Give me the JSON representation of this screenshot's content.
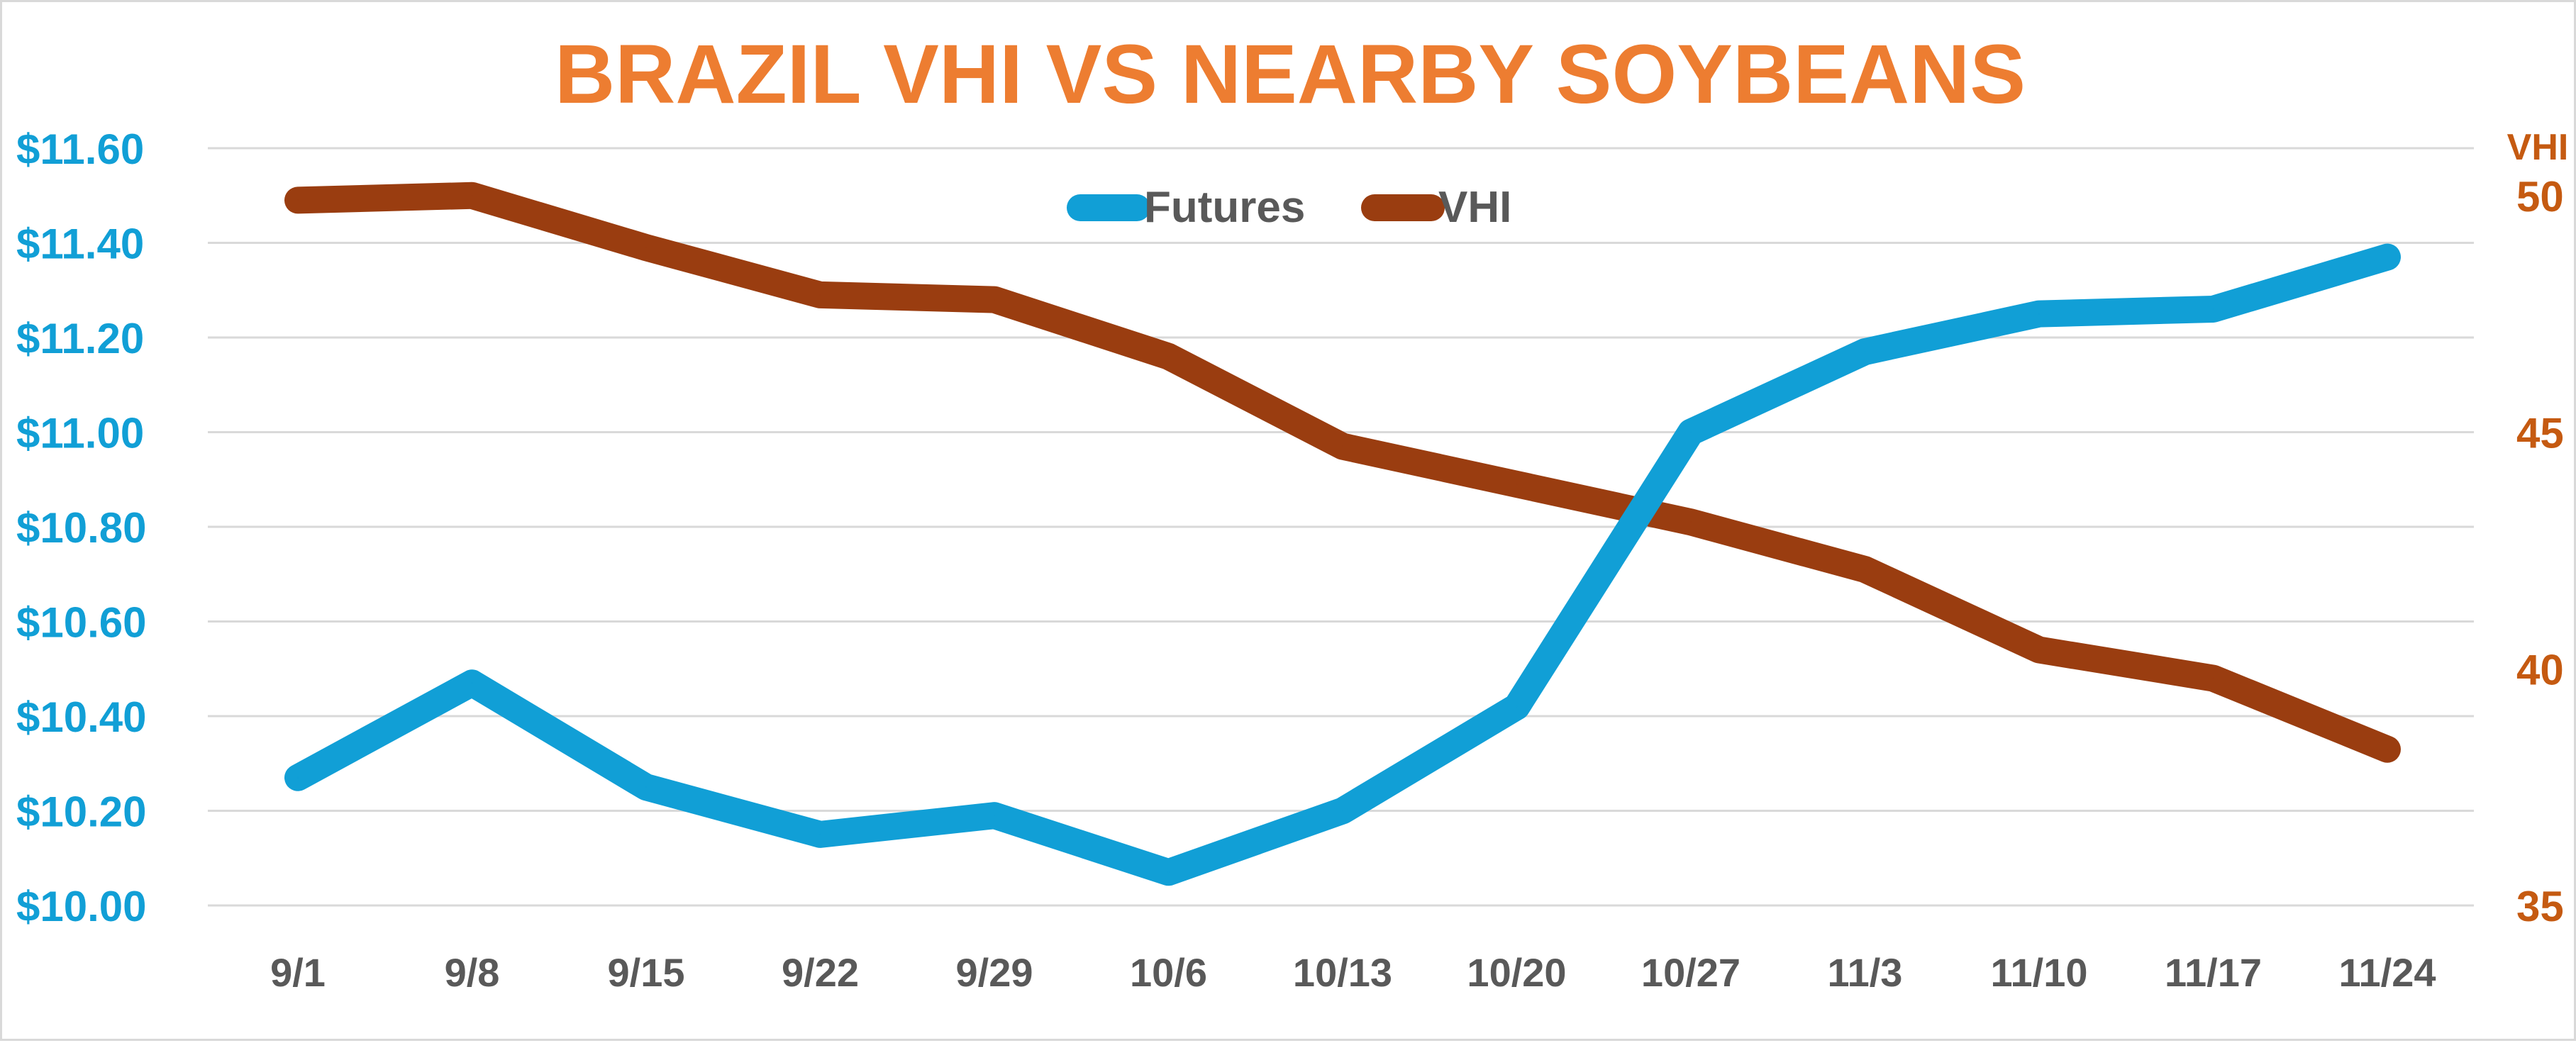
{
  "chart_data": {
    "type": "line",
    "title": "BRAZIL VHI VS NEARBY SOYBEANS",
    "categories": [
      "9/1",
      "9/8",
      "9/15",
      "9/22",
      "9/29",
      "10/6",
      "10/13",
      "10/20",
      "10/27",
      "11/3",
      "11/10",
      "11/17",
      "11/24"
    ],
    "series": [
      {
        "name": "Futures",
        "axis": "left",
        "color": "#119FD6",
        "values": [
          10.27,
          10.47,
          10.25,
          10.15,
          10.19,
          10.07,
          10.2,
          10.42,
          11.0,
          11.17,
          11.25,
          11.26,
          11.37
        ]
      },
      {
        "name": "VHI",
        "axis": "right",
        "color": "#9A3D10",
        "values": [
          49.9,
          50.0,
          48.9,
          47.9,
          47.8,
          46.6,
          44.7,
          43.9,
          43.1,
          42.1,
          40.4,
          39.8,
          38.3
        ]
      }
    ],
    "left_axis": {
      "ylim": [
        10.0,
        11.6
      ],
      "ticks": [
        "$10.00",
        "$10.20",
        "$10.40",
        "$10.60",
        "$10.80",
        "$11.00",
        "$11.20",
        "$11.40",
        "$11.60"
      ],
      "color": "#119FD6"
    },
    "right_axis": {
      "label": "VHI",
      "ylim": [
        35,
        51
      ],
      "ticks": [
        "35",
        "40",
        "45",
        "50"
      ],
      "tick_values": [
        35,
        40,
        45,
        50
      ],
      "color": "#C55A11"
    },
    "grid": true,
    "legend_position": "top-center",
    "colors": {
      "title": "#ED7D31",
      "xlabels": "#595959",
      "grid": "#d9d9d9"
    }
  }
}
